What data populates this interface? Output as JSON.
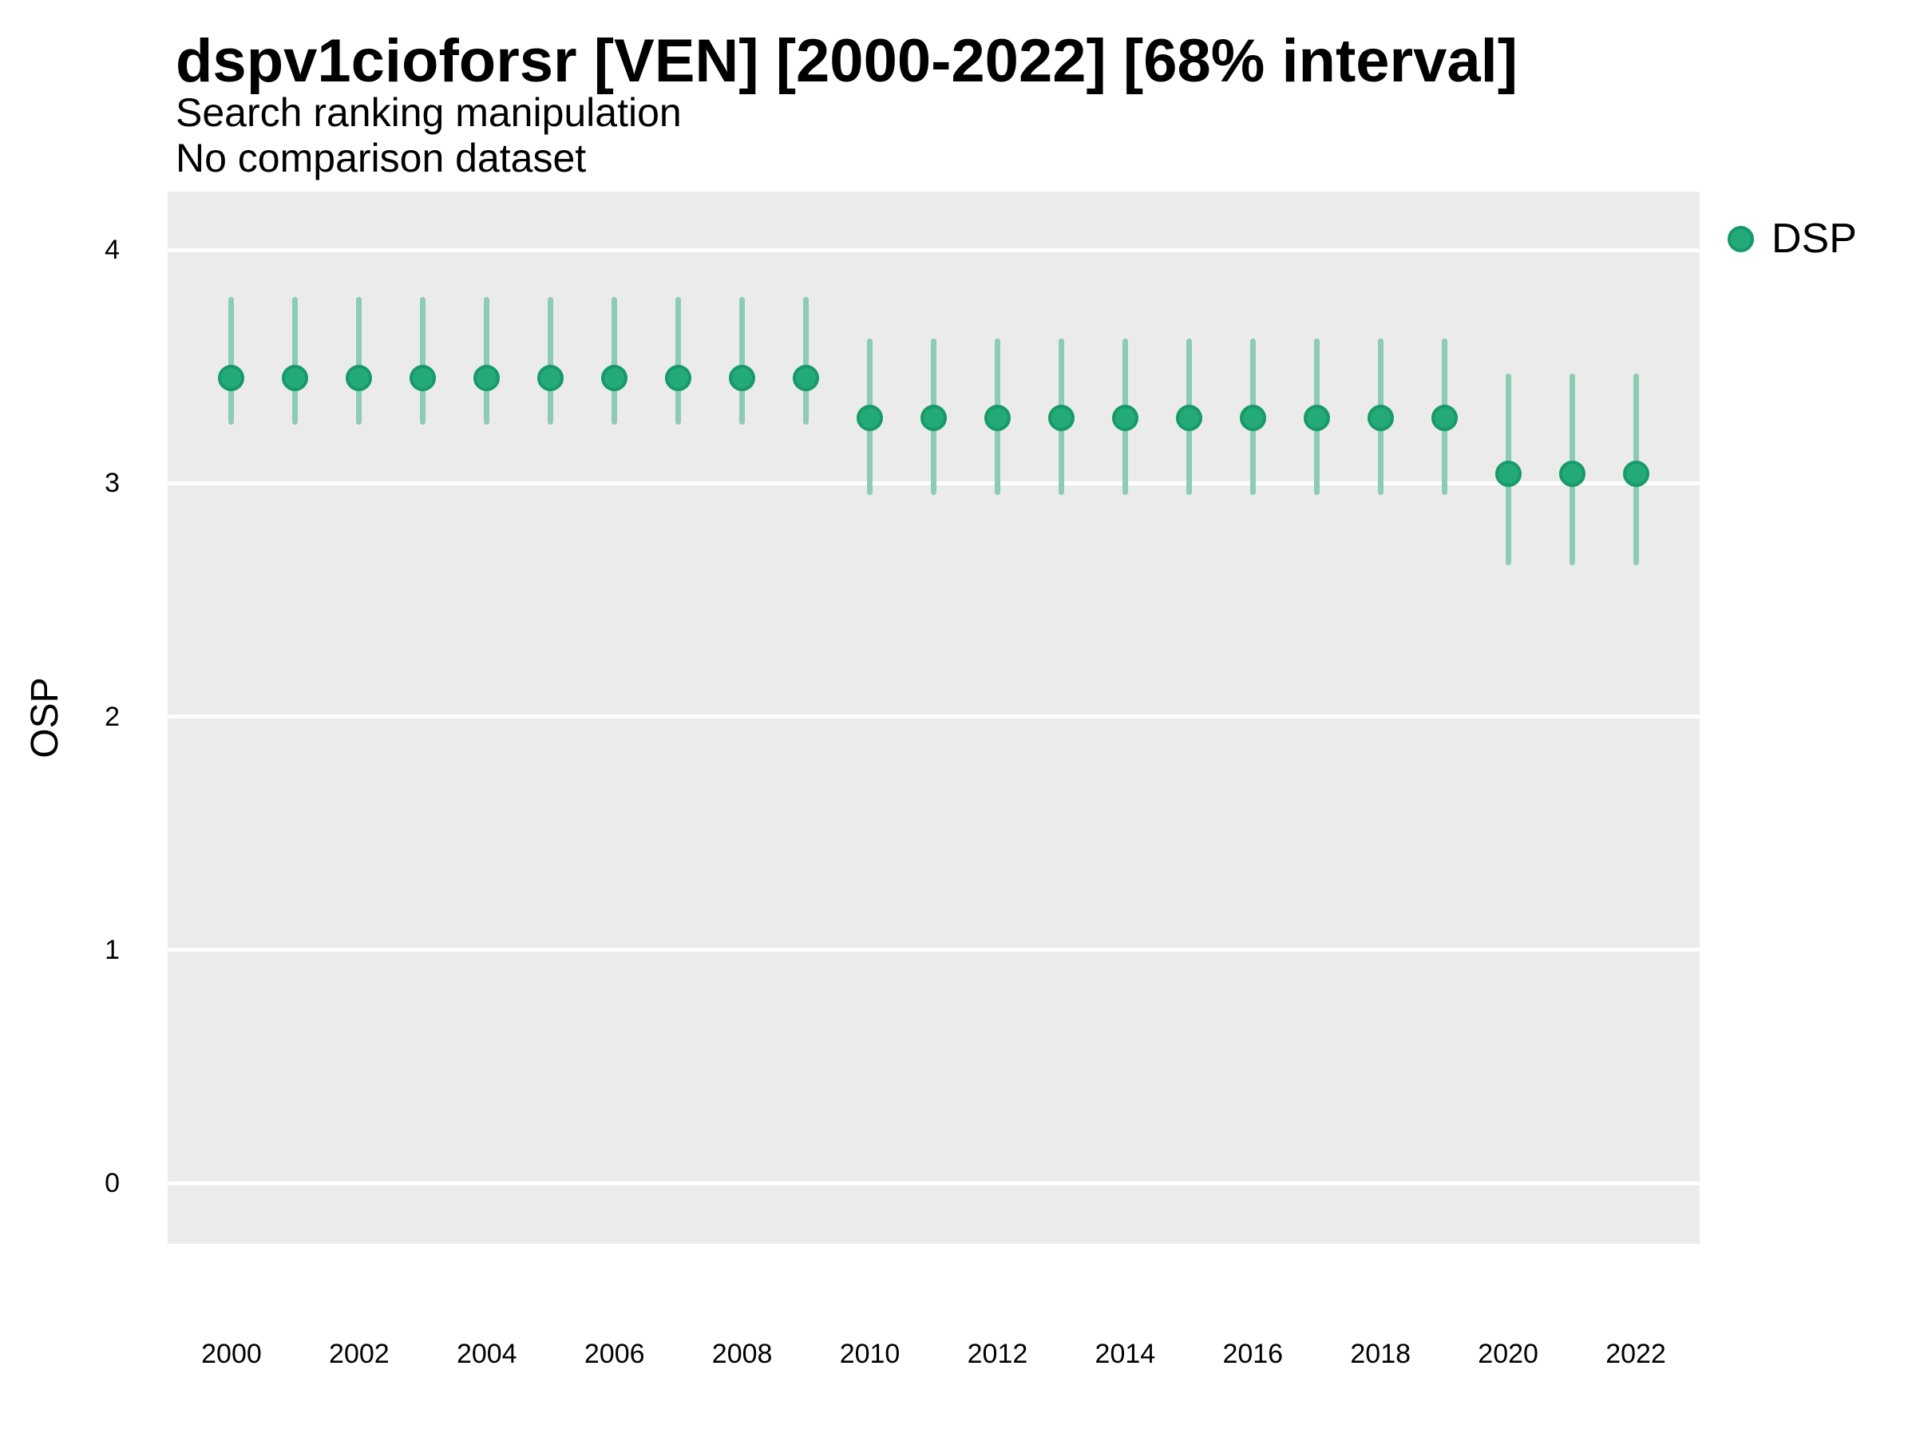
{
  "chart_data": {
    "type": "scatter",
    "title": "dspv1cioforsr [VEN] [2000-2022] [68% interval]",
    "subtitle": "Search ranking manipulation",
    "note": "No comparison dataset",
    "ylabel": "OSP",
    "xlabel": "",
    "legend": {
      "position": "right-top",
      "entries": [
        {
          "label": "DSP",
          "color": "#24aa78"
        }
      ]
    },
    "yticks": [
      4,
      3,
      2,
      1,
      0
    ],
    "xticks": [
      2000,
      2002,
      2004,
      2006,
      2008,
      2010,
      2012,
      2014,
      2016,
      2018,
      2020,
      2022
    ],
    "xlim": [
      1999,
      2023
    ],
    "ylim": [
      -0.26,
      4.25
    ],
    "grid": "horizontal-major-only",
    "colors": {
      "point": "#24aa78",
      "point_border": "#169a69",
      "interval": "#8cccb2",
      "panel_bg": "#ebebeb",
      "grid": "#ffffff",
      "text": "#000000"
    },
    "series": [
      {
        "name": "DSP",
        "points": [
          {
            "x": 2000,
            "y": 3.45,
            "lo": 3.25,
            "hi": 3.8
          },
          {
            "x": 2001,
            "y": 3.45,
            "lo": 3.25,
            "hi": 3.8
          },
          {
            "x": 2002,
            "y": 3.45,
            "lo": 3.25,
            "hi": 3.8
          },
          {
            "x": 2003,
            "y": 3.45,
            "lo": 3.25,
            "hi": 3.8
          },
          {
            "x": 2004,
            "y": 3.45,
            "lo": 3.25,
            "hi": 3.8
          },
          {
            "x": 2005,
            "y": 3.45,
            "lo": 3.25,
            "hi": 3.8
          },
          {
            "x": 2006,
            "y": 3.45,
            "lo": 3.25,
            "hi": 3.8
          },
          {
            "x": 2007,
            "y": 3.45,
            "lo": 3.25,
            "hi": 3.8
          },
          {
            "x": 2008,
            "y": 3.45,
            "lo": 3.25,
            "hi": 3.8
          },
          {
            "x": 2009,
            "y": 3.45,
            "lo": 3.25,
            "hi": 3.8
          },
          {
            "x": 2010,
            "y": 3.28,
            "lo": 2.95,
            "hi": 3.62
          },
          {
            "x": 2011,
            "y": 3.28,
            "lo": 2.95,
            "hi": 3.62
          },
          {
            "x": 2012,
            "y": 3.28,
            "lo": 2.95,
            "hi": 3.62
          },
          {
            "x": 2013,
            "y": 3.28,
            "lo": 2.95,
            "hi": 3.62
          },
          {
            "x": 2014,
            "y": 3.28,
            "lo": 2.95,
            "hi": 3.62
          },
          {
            "x": 2015,
            "y": 3.28,
            "lo": 2.95,
            "hi": 3.62
          },
          {
            "x": 2016,
            "y": 3.28,
            "lo": 2.95,
            "hi": 3.62
          },
          {
            "x": 2017,
            "y": 3.28,
            "lo": 2.95,
            "hi": 3.62
          },
          {
            "x": 2018,
            "y": 3.28,
            "lo": 2.95,
            "hi": 3.62
          },
          {
            "x": 2019,
            "y": 3.28,
            "lo": 2.95,
            "hi": 3.62
          },
          {
            "x": 2020,
            "y": 3.04,
            "lo": 2.65,
            "hi": 3.47
          },
          {
            "x": 2021,
            "y": 3.04,
            "lo": 2.65,
            "hi": 3.47
          },
          {
            "x": 2022,
            "y": 3.04,
            "lo": 2.65,
            "hi": 3.47
          }
        ]
      }
    ]
  }
}
